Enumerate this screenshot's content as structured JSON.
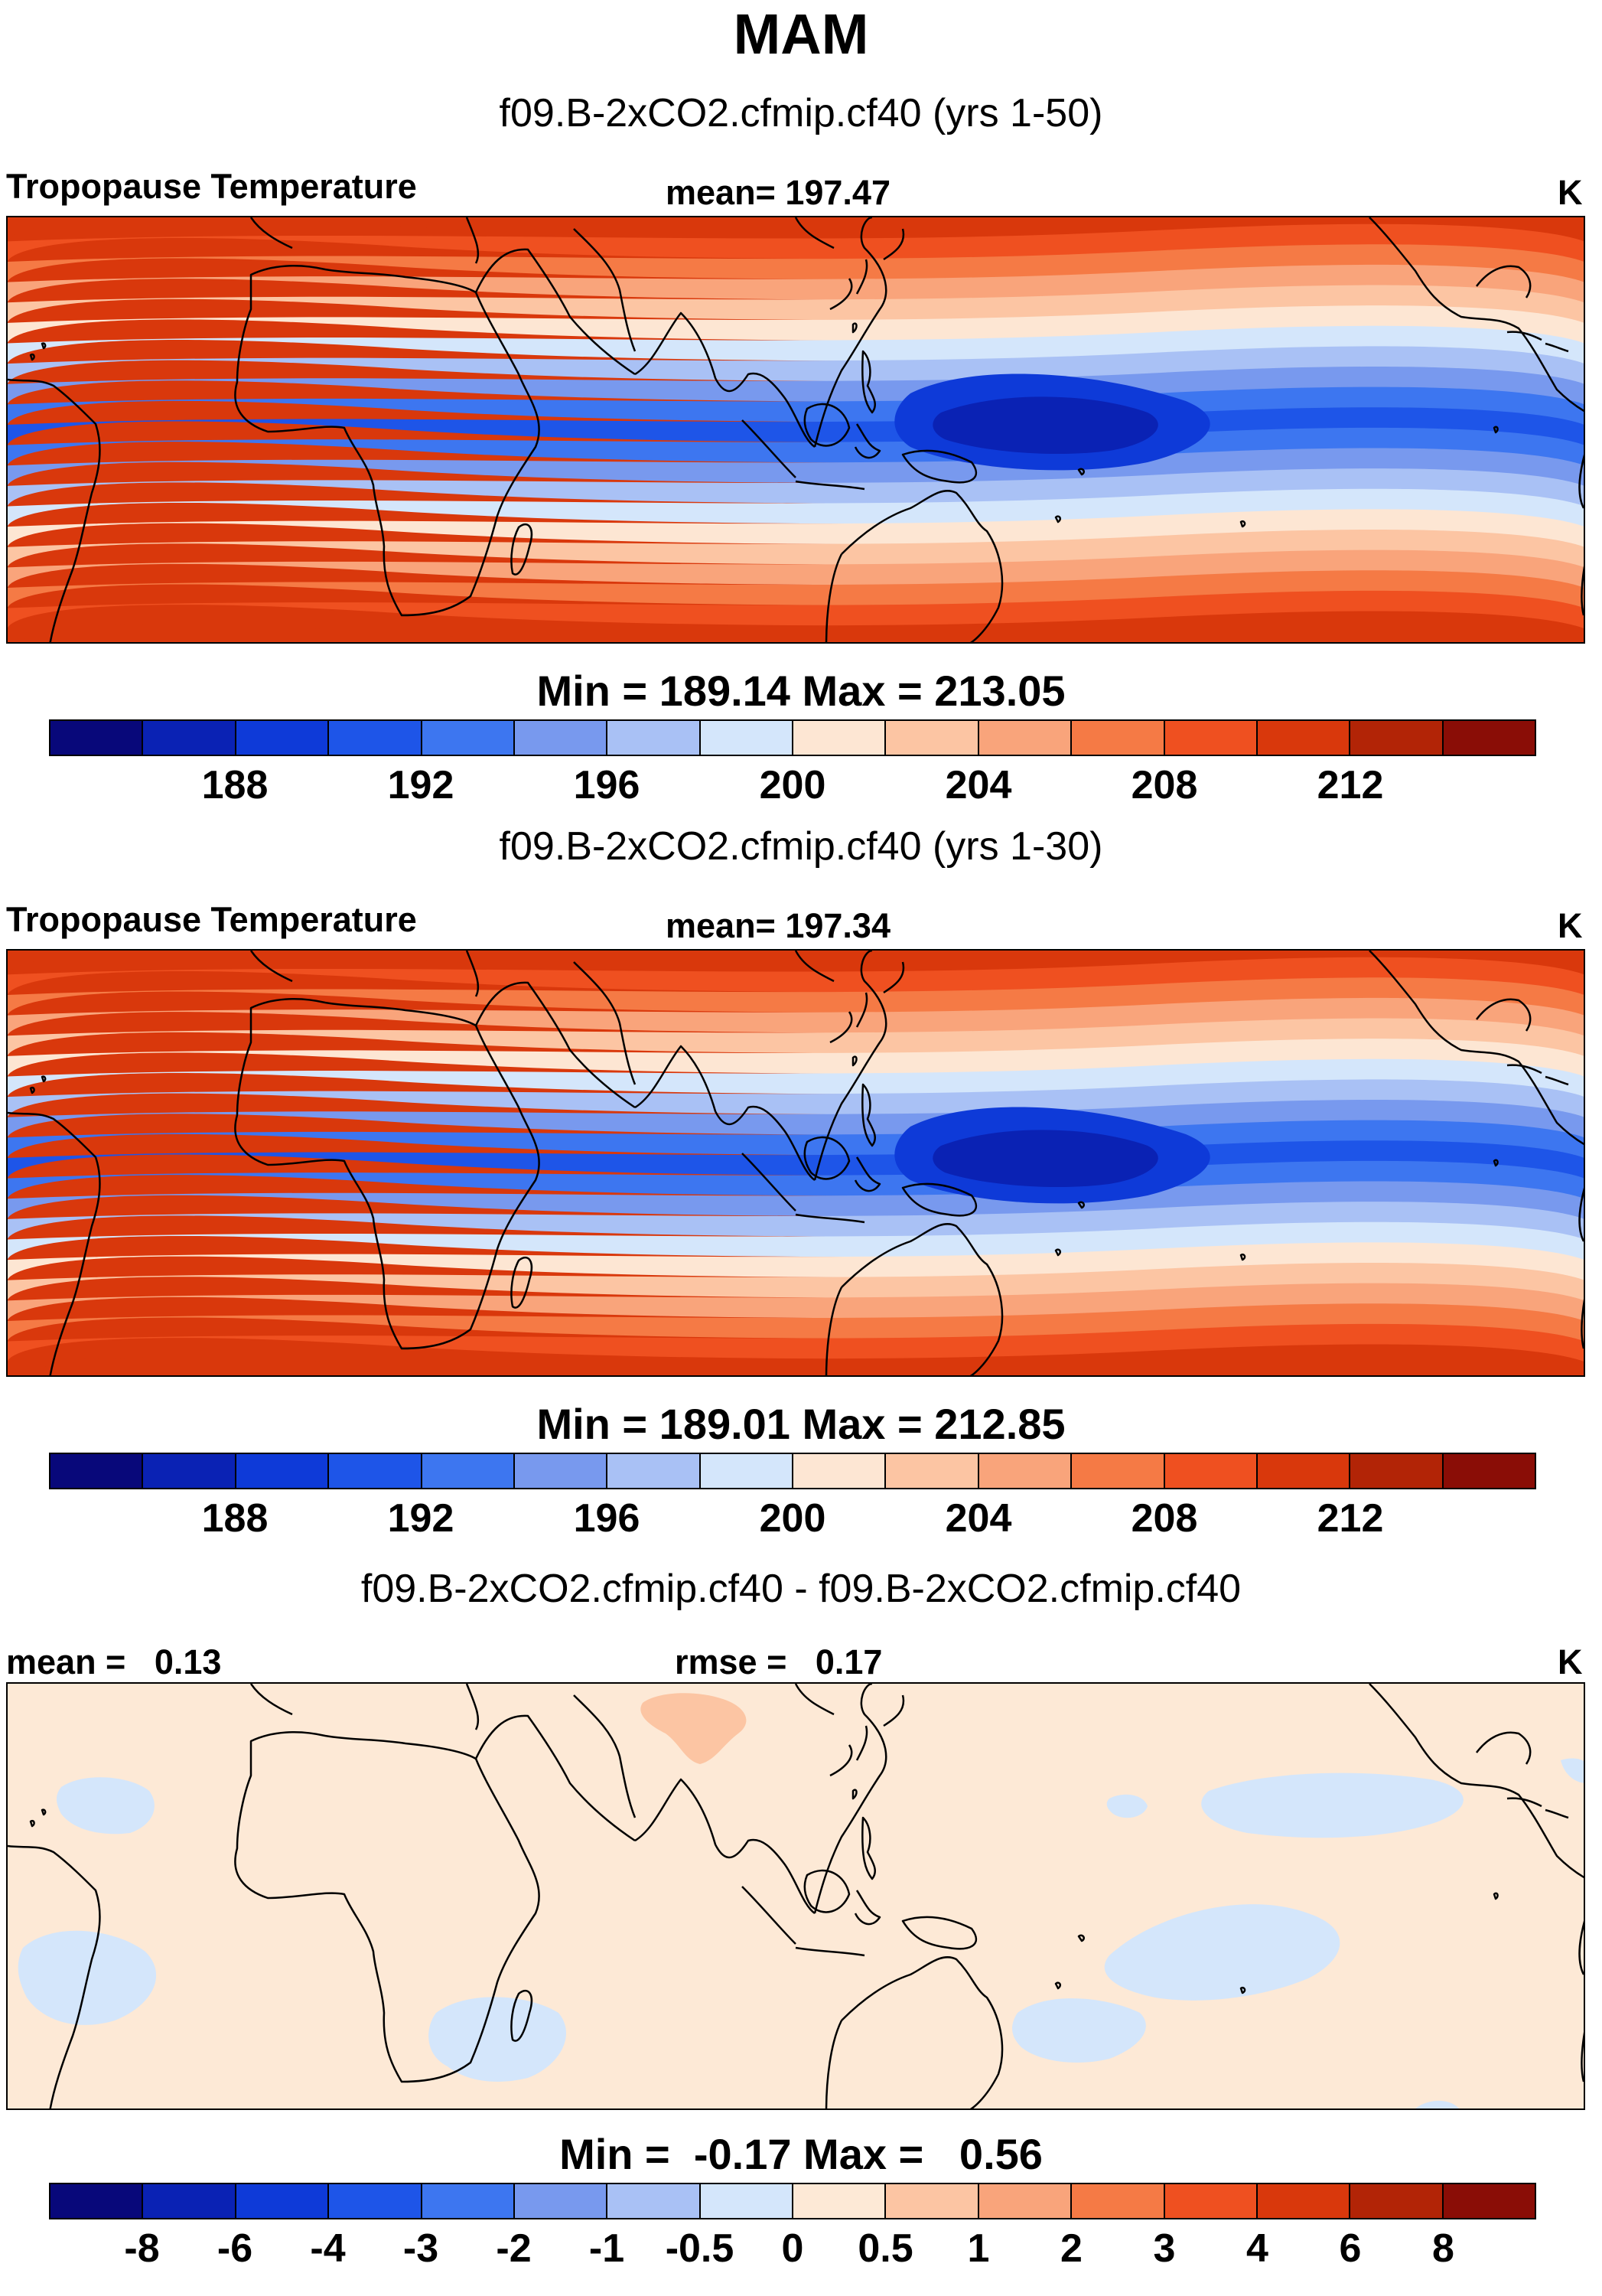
{
  "figure": {
    "title": "MAM"
  },
  "colors": {
    "absolute_scale": [
      "#08087a",
      "#0a22b4",
      "#0e3ad8",
      "#1e55e8",
      "#3d76f0",
      "#7899ee",
      "#a9c1f5",
      "#d4e6fb",
      "#fde6d3",
      "#fcc5a3",
      "#f9a47b",
      "#f57a45",
      "#ef5020",
      "#d9380c",
      "#b22406",
      "#8a0d06"
    ],
    "difference_scale": [
      "#08087a",
      "#0a22b4",
      "#0e3ad8",
      "#1e55e8",
      "#3d76f0",
      "#7899ee",
      "#a9c1f5",
      "#d4e6fb",
      "#fde9d6",
      "#fcc5a3",
      "#f9a47b",
      "#f57a45",
      "#ef5020",
      "#d9380c",
      "#b22406",
      "#8a0d06"
    ]
  },
  "panels": [
    {
      "title": "f09.B-2xCO2.cfmip.cf40 (yrs 1-50)",
      "left_label": "Tropopause Temperature",
      "center_label": "mean= 197.47",
      "units": "K",
      "min_max": "Min = 189.14 Max = 213.05",
      "colorbar_ticks": [
        "188",
        "192",
        "196",
        "200",
        "204",
        "208",
        "212"
      ]
    },
    {
      "title": "f09.B-2xCO2.cfmip.cf40 (yrs 1-30)",
      "left_label": "Tropopause Temperature",
      "center_label": "mean= 197.34",
      "units": "K",
      "min_max": "Min = 189.01 Max = 212.85",
      "colorbar_ticks": [
        "188",
        "192",
        "196",
        "200",
        "204",
        "208",
        "212"
      ]
    },
    {
      "title": "f09.B-2xCO2.cfmip.cf40 - f09.B-2xCO2.cfmip.cf40",
      "left_label": "mean =   0.13",
      "center_label": "rmse =   0.17",
      "units": "K",
      "min_max": "Min =  -0.17 Max =   0.56",
      "colorbar_ticks": [
        "-8",
        "-6",
        "-4",
        "-3",
        "-2",
        "-1",
        "-0.5",
        "0",
        "0.5",
        "1",
        "2",
        "3",
        "4",
        "6",
        "8"
      ]
    }
  ]
}
